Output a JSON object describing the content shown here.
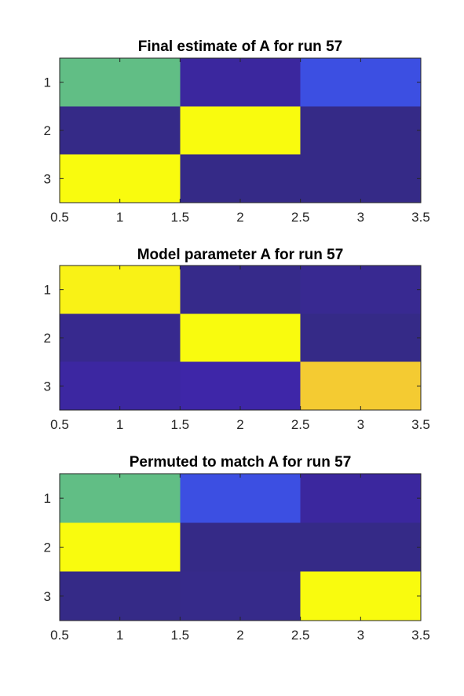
{
  "chart_data": [
    {
      "type": "heatmap",
      "title": "Final estimate of A for run 57",
      "x_ticks": [
        "0.5",
        "1",
        "1.5",
        "2",
        "2.5",
        "3",
        "3.5"
      ],
      "y_ticks": [
        "1",
        "2",
        "3"
      ],
      "xlim": [
        0.5,
        3.5
      ],
      "ylim": [
        0.5,
        3.5
      ],
      "y_direction": "reverse",
      "grid": false,
      "colormap": "parula",
      "clim": [
        0,
        1
      ],
      "values": [
        [
          0.62,
          0.07,
          0.22
        ],
        [
          0.0,
          1.0,
          0.0
        ],
        [
          1.0,
          0.0,
          0.0
        ]
      ]
    },
    {
      "type": "heatmap",
      "title": "Model parameter A for run 57",
      "x_ticks": [
        "0.5",
        "1",
        "1.5",
        "2",
        "2.5",
        "3",
        "3.5"
      ],
      "y_ticks": [
        "1",
        "2",
        "3"
      ],
      "xlim": [
        0.5,
        3.5
      ],
      "ylim": [
        0.5,
        3.5
      ],
      "y_direction": "reverse",
      "grid": false,
      "colormap": "parula",
      "clim": [
        0,
        1
      ],
      "values": [
        [
          0.97,
          0.01,
          0.03
        ],
        [
          0.02,
          1.0,
          0.0
        ],
        [
          0.08,
          0.1,
          0.85
        ]
      ]
    },
    {
      "type": "heatmap",
      "title": "Permuted to match A for run 57",
      "x_ticks": [
        "0.5",
        "1",
        "1.5",
        "2",
        "2.5",
        "3",
        "3.5"
      ],
      "y_ticks": [
        "1",
        "2",
        "3"
      ],
      "xlim": [
        0.5,
        3.5
      ],
      "ylim": [
        0.5,
        3.5
      ],
      "y_direction": "reverse",
      "grid": false,
      "colormap": "parula",
      "clim": [
        0,
        1
      ],
      "values": [
        [
          0.62,
          0.22,
          0.07
        ],
        [
          1.0,
          0.0,
          0.0
        ],
        [
          0.0,
          0.01,
          1.0
        ]
      ]
    }
  ]
}
